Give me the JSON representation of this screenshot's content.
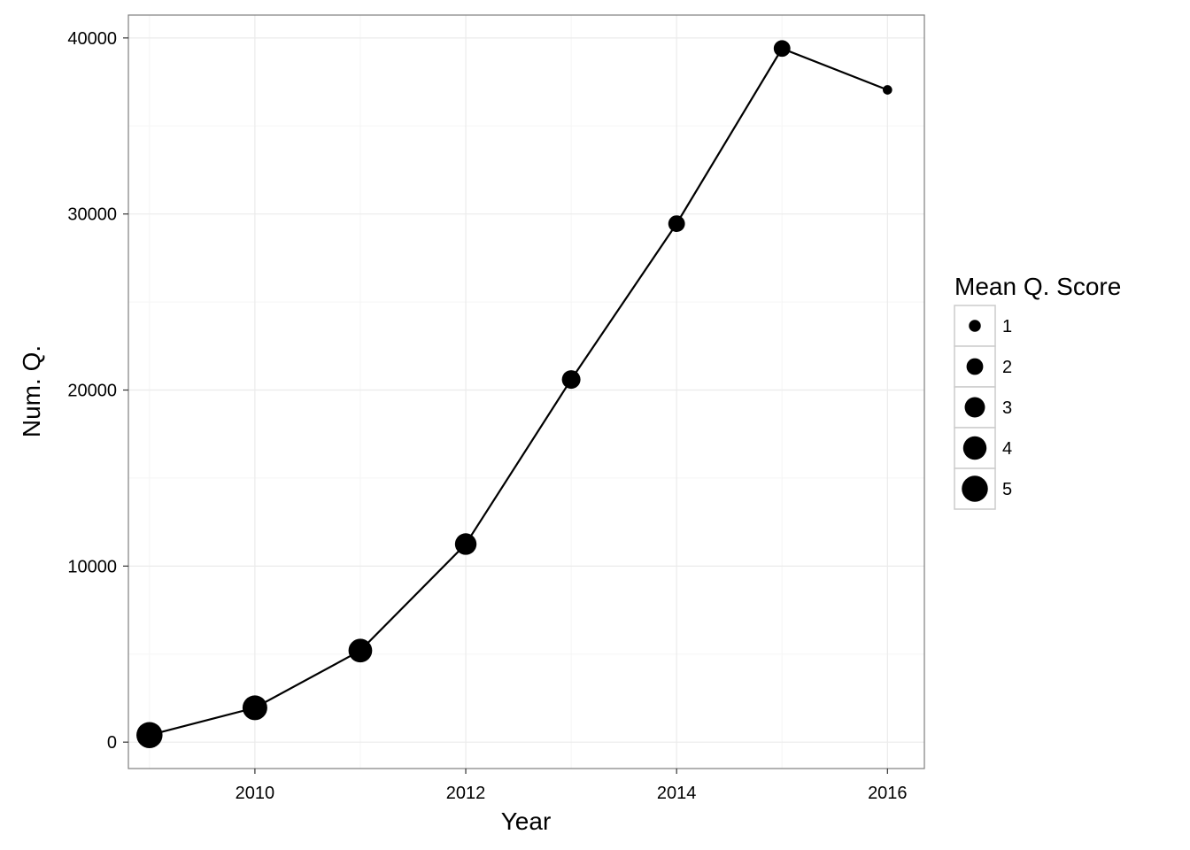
{
  "chart_data": {
    "type": "line",
    "xlabel": "Year",
    "ylabel": "Num. Q.",
    "xlim": [
      2008.8,
      2016.35
    ],
    "ylim": [
      -1500,
      41300
    ],
    "x_ticks": [
      2010,
      2012,
      2014,
      2016
    ],
    "x_tick_labels": [
      "2010",
      "2012",
      "2014",
      "2016"
    ],
    "x_minor_ticks": [
      2009,
      2011,
      2013,
      2015
    ],
    "y_ticks": [
      0,
      10000,
      20000,
      30000,
      40000
    ],
    "y_tick_labels": [
      "0",
      "10000",
      "20000",
      "30000",
      "40000"
    ],
    "y_minor_ticks": [
      5000,
      15000,
      25000,
      35000
    ],
    "grid": true,
    "series": [
      {
        "x": [
          2009,
          2010,
          2011,
          2012,
          2013,
          2014,
          2015,
          2016
        ],
        "y": [
          400,
          1950,
          5200,
          11250,
          20600,
          29450,
          39400,
          37050
        ],
        "size": [
          5.0,
          4.5,
          4.1,
          3.4,
          2.5,
          2.0,
          2.0,
          0.6
        ]
      }
    ],
    "legend": {
      "title": "Mean Q. Score",
      "position": "right",
      "values": [
        1,
        2,
        3,
        4,
        5
      ],
      "labels": [
        "1",
        "2",
        "3",
        "4",
        "5"
      ]
    },
    "colors": {
      "point": "#000000",
      "line": "#000000",
      "grid_major": "#ebebeb",
      "grid_minor": "#f5f5f5",
      "panel_border": "#7f7f7f",
      "legend_key_border": "#cccccc"
    }
  }
}
